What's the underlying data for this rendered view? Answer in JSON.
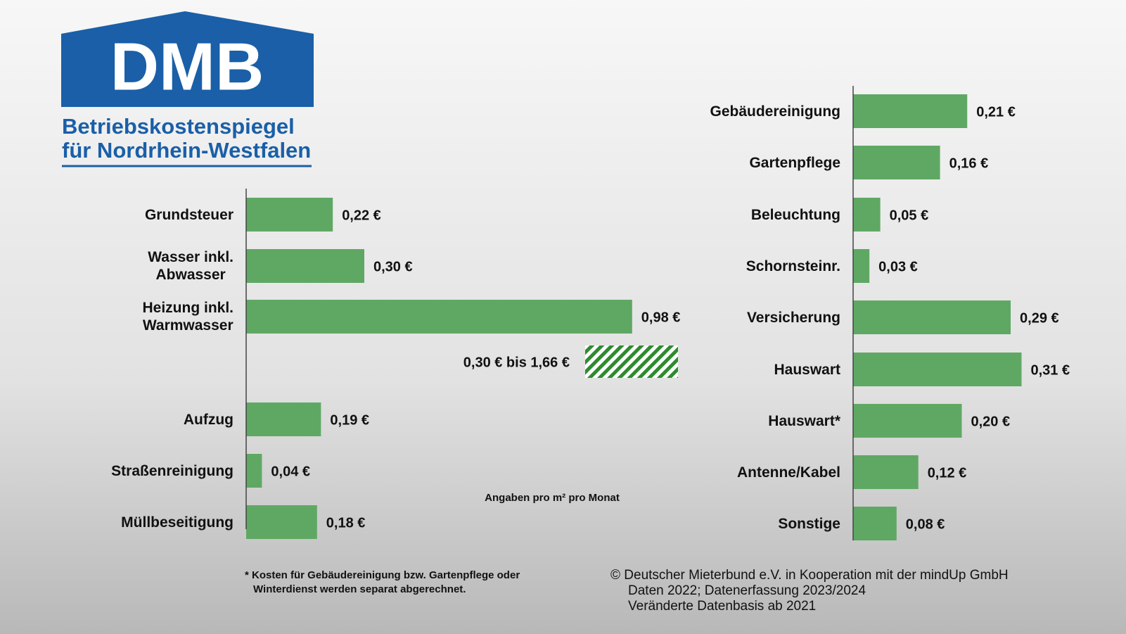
{
  "logo": {
    "text": "DMB",
    "subtitle": [
      "Betriebskostenspiegel",
      "für Nordrhein-Westfalen"
    ]
  },
  "chart_data": [
    {
      "type": "bar",
      "orientation": "horizontal",
      "categories": [
        "Grundsteuer",
        "Wasser inkl.\nAbwasser",
        "Heizung inkl.\nWarmwasser",
        "Aufzug",
        "Straßenreinigung",
        "Müllbeseitigung"
      ],
      "values": [
        0.22,
        0.3,
        0.98,
        0.19,
        0.04,
        0.18
      ],
      "value_labels": [
        "0,22 €",
        "0,30 €",
        "0,98 €",
        "0,19 €",
        "0,04 €",
        "0,18 €"
      ],
      "color": "#5fa864",
      "xlim": [
        0,
        1
      ],
      "range_label": "0,30 € bis 1,66 €",
      "note": "Angaben pro m² pro Monat"
    },
    {
      "type": "bar",
      "orientation": "horizontal",
      "categories": [
        "Gebäudereinigung",
        "Gartenpflege",
        "Beleuchtung",
        "Schornsteinr.",
        "Versicherung",
        "Hauswart",
        "Hauswart*",
        "Antenne/Kabel",
        "Sonstige"
      ],
      "values": [
        0.21,
        0.16,
        0.05,
        0.03,
        0.29,
        0.31,
        0.2,
        0.12,
        0.08
      ],
      "value_labels": [
        "0,21 €",
        "0,16 €",
        "0,05 €",
        "0,03 €",
        "0,29 €",
        "0,31 €",
        "0,20 €",
        "0,12 €",
        "0,08 €"
      ],
      "color": "#5fa864",
      "xlim": [
        0,
        0.4
      ]
    }
  ],
  "footnote": [
    "* Kosten für Gebäudereinigung bzw. Gartenpflege oder",
    "Winterdienst werden separat abgerechnet."
  ],
  "source": [
    "© Deutscher Mieterbund e.V. in Kooperation mit der mindUp GmbH",
    "Daten 2022; Datenerfassung 2023/2024",
    "Veränderte Datenbasis ab 2021"
  ]
}
